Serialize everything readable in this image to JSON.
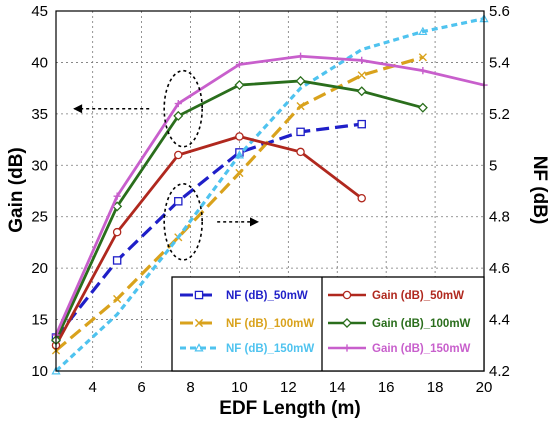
{
  "chart_data": {
    "type": "line",
    "xlabel": "EDF Length (m)",
    "ylabel_left": "Gain (dB)",
    "ylabel_right": "NF (dB)",
    "xlim": [
      2.5,
      20
    ],
    "ylim_left": [
      10,
      45
    ],
    "ylim_right": [
      4.2,
      5.6
    ],
    "x_ticks": [
      "4",
      "6",
      "8",
      "10",
      "12",
      "14",
      "16",
      "18",
      "20"
    ],
    "y_ticks_left": [
      "10",
      "15",
      "20",
      "25",
      "30",
      "35",
      "40",
      "45"
    ],
    "y_ticks_right": [
      "4.2",
      "4.4",
      "4.6",
      "4.8",
      "5",
      "5.2",
      "5.4",
      "5.6"
    ],
    "grid": true,
    "legend_position": "bottom-right",
    "nf_series": [
      {
        "name": "NF (dB)_50mW",
        "color": "#1f1fc8",
        "dash": "long-dash",
        "marker": "square",
        "x": [
          2.5,
          5,
          7.5,
          10,
          12.5,
          15
        ],
        "y": [
          4.33,
          4.63,
          4.86,
          5.05,
          5.13,
          5.16
        ]
      },
      {
        "name": "NF (dB)_100mW",
        "color": "#d9a21c",
        "dash": "long-dash",
        "marker": "x",
        "x": [
          2.5,
          5,
          7.5,
          10,
          12.5,
          15,
          17.5
        ],
        "y": [
          4.28,
          4.48,
          4.72,
          4.97,
          5.23,
          5.35,
          5.42
        ]
      },
      {
        "name": "NF (dB)_150mW",
        "color": "#4fc3ef",
        "dash": "short-dash",
        "marker": "triangle",
        "x": [
          2.5,
          5,
          7.5,
          10,
          12.5,
          15,
          17.5,
          20
        ],
        "y": [
          4.2,
          4.42,
          4.72,
          5.04,
          5.3,
          5.45,
          5.52,
          5.57
        ]
      }
    ],
    "gain_series": [
      {
        "name": "Gain (dB)_50mW",
        "color": "#b0281e",
        "marker": "circle",
        "x": [
          2.5,
          5,
          7.5,
          10,
          12.5,
          15
        ],
        "y": [
          12.5,
          23.5,
          31,
          32.8,
          31.3,
          26.8
        ]
      },
      {
        "name": "Gain (dB)_100mW",
        "color": "#2a6e1c",
        "marker": "diamond",
        "x": [
          2.5,
          5,
          7.5,
          10,
          12.5,
          15,
          17.5
        ],
        "y": [
          13,
          26,
          34.8,
          37.8,
          38.2,
          37.2,
          35.6
        ]
      },
      {
        "name": "Gain (dB)_150mW",
        "color": "#c85fcc",
        "marker": "plus",
        "x": [
          2.5,
          5,
          7.5,
          10,
          12.5,
          15,
          17.5,
          20
        ],
        "y": [
          13.5,
          27,
          36,
          39.8,
          40.6,
          40.2,
          39.2,
          37.8
        ]
      }
    ],
    "annotations": [
      {
        "shape": "ellipse",
        "around": "gain curves",
        "center": [
          7.7,
          35.5
        ],
        "arrow_direction": "left",
        "arrow_to_x": 3.2
      },
      {
        "shape": "ellipse",
        "around": "NF curves",
        "center": [
          7.7,
          24.5
        ],
        "arrow_direction": "right",
        "arrow_to_x": 10.8
      }
    ]
  }
}
